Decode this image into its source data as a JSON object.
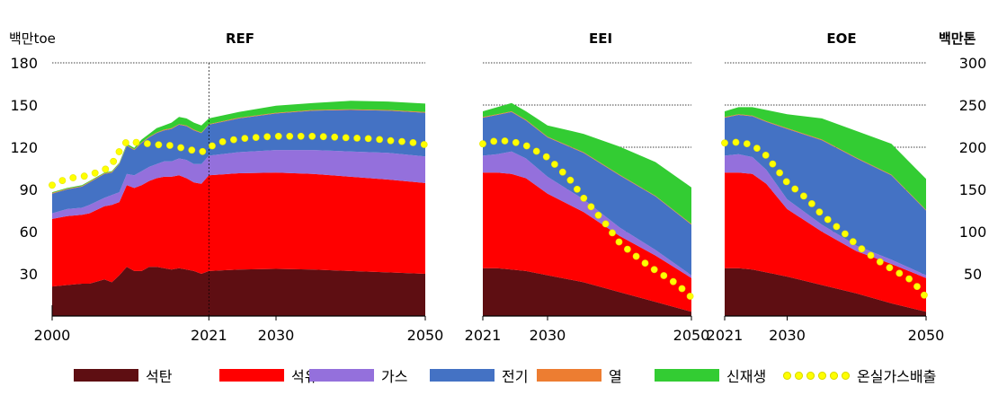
{
  "colors": {
    "석탄": "#5e0e12",
    "석유": "#ff0000",
    "가스": "#9470dc",
    "전기": "#4472c4",
    "열": "#ed7d31",
    "신재생": "#33cc33",
    "온실가스배출": "#ffff00"
  },
  "axis": {
    "left_unit": "백만toe",
    "right_unit": "백만톤",
    "left_ticks": [
      "30",
      "60",
      "90",
      "120",
      "150",
      "180"
    ],
    "right_ticks": [
      "50",
      "100",
      "150",
      "200",
      "250",
      "300"
    ]
  },
  "legend": {
    "items": [
      {
        "key": "석탄",
        "label": "석탄",
        "kind": "swatch"
      },
      {
        "key": "석유",
        "label": "석유",
        "kind": "swatch"
      },
      {
        "key": "가스",
        "label": "가스",
        "kind": "swatch"
      },
      {
        "key": "전기",
        "label": "전기",
        "kind": "swatch"
      },
      {
        "key": "열",
        "label": "열",
        "kind": "swatch"
      },
      {
        "key": "신재생",
        "label": "신재생",
        "kind": "swatch"
      },
      {
        "key": "온실가스배출",
        "label": "온실가스배출",
        "kind": "dots"
      }
    ]
  },
  "chart_data": [
    {
      "type": "area",
      "title": "REF",
      "ylabel": "백만toe",
      "y2label": "백만톤",
      "ylim": [
        0,
        180
      ],
      "y2lim": [
        0,
        300
      ],
      "x_ticks": [
        "2000",
        "2021",
        "2030",
        "2050"
      ],
      "x": [
        2000,
        2002,
        2004,
        2005,
        2007,
        2008,
        2009,
        2010,
        2011,
        2012,
        2013,
        2014,
        2015,
        2016,
        2017,
        2018,
        2019,
        2020,
        2021,
        2025,
        2030,
        2035,
        2040,
        2045,
        2050
      ],
      "series": [
        {
          "name": "석탄",
          "values": [
            21,
            22,
            23,
            23,
            26,
            24,
            29,
            35,
            32,
            32,
            35,
            35,
            34,
            33,
            34,
            33,
            32,
            30,
            32,
            33,
            33.5,
            33,
            32,
            31,
            30
          ]
        },
        {
          "name": "석유",
          "values": [
            48,
            49,
            49,
            50,
            52,
            55,
            52,
            58,
            59,
            61,
            61,
            63,
            65,
            66,
            66,
            65,
            63,
            64,
            68,
            68.5,
            68.5,
            68,
            67,
            66,
            64.5
          ]
        },
        {
          "name": "가스",
          "values": [
            4,
            5,
            5,
            6,
            6,
            7,
            7,
            8,
            9,
            10,
            10,
            10,
            11,
            11,
            12,
            13,
            13,
            14,
            14,
            15,
            16,
            17,
            18,
            19,
            19
          ]
        },
        {
          "name": "전기",
          "values": [
            14,
            14,
            15,
            16,
            17,
            16,
            20,
            20,
            18,
            20,
            21,
            22,
            22,
            23,
            24,
            24,
            24,
            22,
            22,
            24,
            26,
            28,
            29.5,
            30,
            31
          ]
        },
        {
          "name": "열",
          "values": [
            0.5,
            0.5,
            0.5,
            0.5,
            0.5,
            0.5,
            0.5,
            0.5,
            0.5,
            0.5,
            0.5,
            0.5,
            0.5,
            0.5,
            0.5,
            0.5,
            0.5,
            0.5,
            0.5,
            0.5,
            0.5,
            0.5,
            0.5,
            0.5,
            0.5
          ]
        },
        {
          "name": "신재생",
          "values": [
            0.5,
            0.5,
            0.5,
            0.5,
            0.5,
            0.5,
            0.5,
            1,
            1,
            2,
            2,
            3,
            3,
            4,
            5,
            5,
            5,
            5,
            4,
            4,
            5,
            5,
            6,
            6,
            6
          ]
        }
      ],
      "emissions": {
        "name": "온실가스배출",
        "axis": "right",
        "x": [
          2000,
          2002,
          2004,
          2006,
          2007,
          2008,
          2009,
          2010,
          2012,
          2014,
          2016,
          2018,
          2020,
          2021,
          2023,
          2025,
          2028,
          2030,
          2033,
          2035,
          2038,
          2040,
          2043,
          2045,
          2048,
          2050
        ],
        "values": [
          155,
          163,
          165,
          170,
          173,
          180,
          195,
          207,
          205,
          203,
          202,
          198,
          194,
          200,
          207,
          210,
          212,
          213,
          213,
          213,
          212,
          211,
          210,
          208,
          206,
          203
        ]
      }
    },
    {
      "type": "area",
      "title": "EEI",
      "ylim": [
        0,
        180
      ],
      "y2lim": [
        0,
        300
      ],
      "x_ticks": [
        "2021",
        "2030",
        "2050"
      ],
      "x": [
        2021,
        2023,
        2025,
        2027,
        2030,
        2035,
        2040,
        2045,
        2050
      ],
      "series": [
        {
          "name": "석탄",
          "values": [
            34,
            34,
            33,
            32,
            29,
            24,
            17,
            10,
            3
          ]
        },
        {
          "name": "석유",
          "values": [
            68,
            68,
            68,
            66,
            58,
            50,
            40,
            33,
            24
          ]
        },
        {
          "name": "가스",
          "values": [
            12,
            13,
            16,
            14,
            12,
            9,
            6,
            4,
            2
          ]
        },
        {
          "name": "전기",
          "values": [
            27,
            28,
            28,
            27,
            28,
            33,
            37,
            38,
            36
          ]
        },
        {
          "name": "열",
          "values": [
            0.5,
            0.5,
            0.5,
            0.5,
            0.5,
            0.5,
            0.5,
            0.5,
            0.5
          ]
        },
        {
          "name": "신재생",
          "values": [
            4,
            5,
            6,
            6,
            8,
            13,
            20,
            24,
            26
          ]
        }
      ],
      "emissions": {
        "name": "온실가스배출",
        "axis": "right",
        "x": [
          2021,
          2023,
          2025,
          2027,
          2030,
          2033,
          2035,
          2038,
          2040,
          2043,
          2045,
          2048,
          2050
        ],
        "values": [
          204,
          208,
          207,
          202,
          188,
          163,
          140,
          110,
          87,
          66,
          54,
          38,
          22
        ]
      }
    },
    {
      "type": "area",
      "title": "EOE",
      "ylim": [
        0,
        180
      ],
      "y2lim": [
        0,
        300
      ],
      "x_ticks": [
        "2021",
        "2030",
        "2050"
      ],
      "x": [
        2021,
        2023,
        2025,
        2027,
        2030,
        2035,
        2040,
        2045,
        2050
      ],
      "series": [
        {
          "name": "석탄",
          "values": [
            34,
            34,
            33,
            31,
            28,
            22,
            16,
            9,
            3
          ]
        },
        {
          "name": "석유",
          "values": [
            68,
            68,
            68,
            63,
            48,
            38,
            30,
            28,
            24
          ]
        },
        {
          "name": "가스",
          "values": [
            12,
            13,
            12,
            10,
            7,
            5,
            4,
            3,
            2
          ]
        },
        {
          "name": "전기",
          "values": [
            27,
            28,
            29,
            34,
            50,
            60,
            62,
            60,
            46
          ]
        },
        {
          "name": "열",
          "values": [
            0.5,
            0.5,
            0.5,
            0.5,
            0.5,
            0.5,
            0.5,
            0.5,
            0.5
          ]
        },
        {
          "name": "신재생",
          "values": [
            4,
            5,
            6,
            8,
            10,
            15,
            19,
            22,
            22
          ]
        }
      ],
      "emissions": {
        "name": "온실가스배출",
        "axis": "right",
        "x": [
          2021,
          2023,
          2025,
          2027,
          2030,
          2033,
          2035,
          2038,
          2040,
          2043,
          2045,
          2048,
          2050
        ],
        "values": [
          205,
          206,
          203,
          190,
          158,
          138,
          120,
          100,
          84,
          66,
          56,
          42,
          22
        ]
      }
    }
  ]
}
